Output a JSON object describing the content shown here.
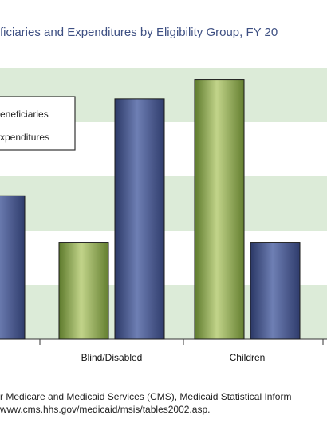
{
  "chart_data": {
    "type": "bar",
    "title": "ficiaries and Expenditures by Eligibility Group, FY 20",
    "categories": [
      "",
      "Blind/Disabled",
      "Children"
    ],
    "series": [
      {
        "name": "eneficiaries",
        "color": "#8da54a",
        "values": [
          null,
          25,
          67
        ]
      },
      {
        "name": "xpenditures",
        "color": "#3f4f80",
        "values": [
          37,
          62,
          25
        ]
      }
    ],
    "ylim": [
      0,
      70
    ],
    "grid": true,
    "legend": "top-left"
  },
  "source": {
    "line1": "r Medicare and Medicaid Services (CMS), Medicaid Statistical Inform",
    "line2": "www.cms.hhs.gov/medicaid/msis/tables2002.asp."
  }
}
